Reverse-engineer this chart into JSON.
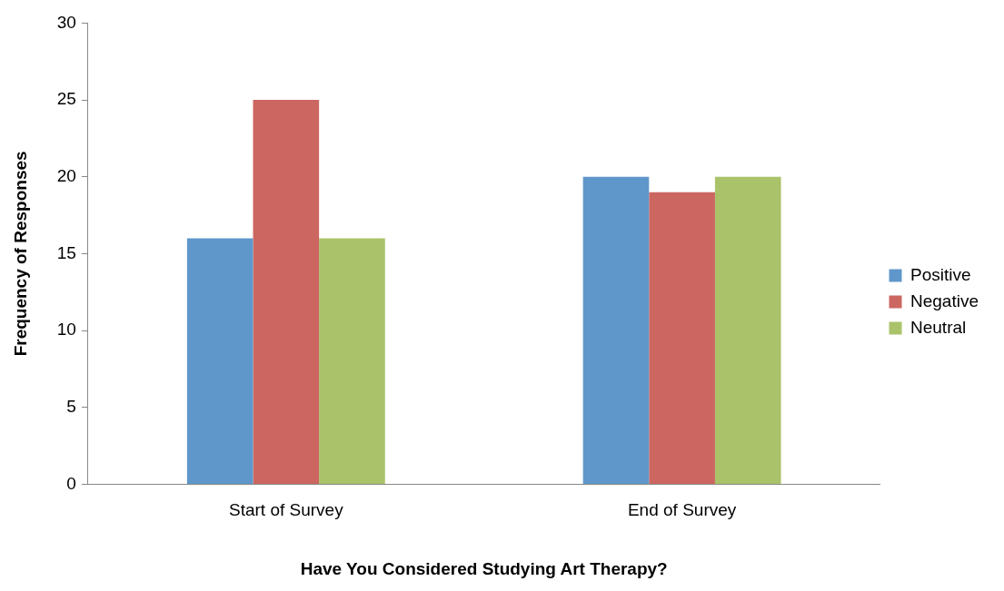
{
  "chart_data": {
    "type": "bar",
    "xlabel": "Have You Considered Studying Art Therapy?",
    "ylabel": "Frequency of Responses",
    "categories": [
      "Start of Survey",
      "End of Survey"
    ],
    "series": [
      {
        "name": "Positive",
        "color": "#6097ca",
        "values": [
          16,
          20
        ]
      },
      {
        "name": "Negative",
        "color": "#cc6660",
        "values": [
          25,
          19
        ]
      },
      {
        "name": "Neutral",
        "color": "#aac36a",
        "values": [
          16,
          20
        ]
      }
    ],
    "ylim": [
      0,
      30
    ],
    "yticks": [
      0,
      5,
      10,
      15,
      20,
      25,
      30
    ],
    "grid": false,
    "legend": "right"
  }
}
